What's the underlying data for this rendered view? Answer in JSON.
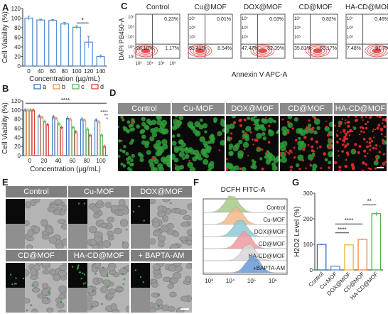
{
  "panel_labels": {
    "A": "A",
    "B": "B",
    "C": "C",
    "D": "D",
    "E": "E",
    "F": "F",
    "G": "G"
  },
  "colors": {
    "blue": "#2b6cb8",
    "orange": "#f0883a",
    "green": "#4fae4f",
    "red": "#d9342b",
    "gray": "#7f7f7f",
    "bar_blue": "#5b8fd1",
    "scatter_green": "#2f9e3a",
    "scatter_red": "#d12a2a"
  },
  "chart_data": [
    {
      "id": "A",
      "type": "bar",
      "categories": [
        "0",
        "40",
        "60",
        "80",
        "100",
        "120",
        "140"
      ],
      "values": [
        100,
        96,
        95,
        88,
        81,
        50,
        20
      ],
      "errors": [
        4,
        2,
        2,
        3,
        3,
        12,
        3
      ],
      "xlabel": "Concentration (µg/mL)",
      "ylabel": "Cell Viability (%)",
      "ylim": [
        0,
        120
      ],
      "yticks": [
        "0",
        "20",
        "40",
        "60",
        "80",
        "100",
        "120"
      ],
      "annotation": "*"
    },
    {
      "id": "B",
      "type": "bar",
      "categories": [
        "0",
        "20",
        "40",
        "60",
        "80",
        "100"
      ],
      "series": [
        {
          "name": "a",
          "values": [
            100,
            87,
            85,
            82,
            80,
            78
          ]
        },
        {
          "name": "b",
          "values": [
            100,
            84,
            82,
            80,
            78,
            74
          ]
        },
        {
          "name": "c",
          "values": [
            100,
            75,
            70,
            62,
            58,
            45
          ]
        },
        {
          "name": "d",
          "values": [
            100,
            68,
            62,
            52,
            45,
            20
          ]
        }
      ],
      "xlabel": "Concentration (µg/mL)",
      "ylabel": "Cell Viability (%)",
      "ylim": [
        0,
        120
      ],
      "yticks": [
        "0",
        "20",
        "40",
        "60",
        "80",
        "100",
        "120"
      ],
      "annotations": [
        "****",
        "****",
        "**",
        "*"
      ]
    },
    {
      "id": "G",
      "type": "bar",
      "categories": [
        "Control",
        "Cu-MOF",
        "DOX@MOF",
        "CD@MOF",
        "HA-CD@MOF"
      ],
      "values": [
        100,
        15,
        98,
        120,
        220
      ],
      "errors": [
        3,
        2,
        4,
        3,
        8
      ],
      "ylabel": "H2O2 Level (%)",
      "ylim": [
        0,
        300
      ],
      "yticks": [
        "0",
        "100",
        "200",
        "300"
      ],
      "annotations": [
        "**",
        "****",
        "****"
      ]
    }
  ],
  "flow_c": {
    "ylabel": "DAPI PB450-A",
    "xlabel": "Annexin V APC-A",
    "y_ticks": [
      "10⁷",
      "10⁶",
      "10⁵",
      "10⁴",
      "10³"
    ],
    "x_ticks": [
      "10³",
      "10⁴",
      "10⁵",
      "10⁶"
    ],
    "plots": [
      {
        "title": "Control",
        "ul": "",
        "ur": "0.23%",
        "ll": "98.10%",
        "lr": "1.17%"
      },
      {
        "title": "Cu@MOF",
        "ul": "",
        "ur": "0.01%",
        "ll": "91.41%",
        "lr": "8.54%"
      },
      {
        "title": "DOX@MOF",
        "ul": "",
        "ur": "0.03%",
        "ll": "47.47%",
        "lr": "52.39%"
      },
      {
        "title": "CD@MOF",
        "ul": "",
        "ur": "0.82%",
        "ll": "35.81%",
        "lr": "63.17%"
      },
      {
        "title": "HA-CD@MOF",
        "ul": "",
        "ur": "0.46%",
        "ll": "7.48%",
        "lr": "91.7%"
      }
    ]
  },
  "panel_d": {
    "titles": [
      "Control",
      "Cu-MOF",
      "DOX@MOF",
      "CD@MOF",
      "HA-CD@MOF"
    ]
  },
  "panel_e": {
    "titles": [
      "Control",
      "Cu-MOF",
      "DOX@MOF",
      "CD@MOF",
      "HA-CD@MOF",
      "+ BAPTA-AM"
    ]
  },
  "panel_f": {
    "title": "DCFH FITC-A",
    "labels": [
      "Control",
      "Cu-MOF",
      "DOX@MOF",
      "CD@MOF",
      "HA-CD@MOF",
      "+BAPTA-AM"
    ],
    "colors": [
      "#a5c98a",
      "#f2b98a",
      "#8fc8d8",
      "#f29aa0",
      "#d8d8d8",
      "#6b9ad8"
    ],
    "x_ticks": [
      "10³",
      "10⁴",
      "10⁵",
      "10⁶"
    ]
  }
}
